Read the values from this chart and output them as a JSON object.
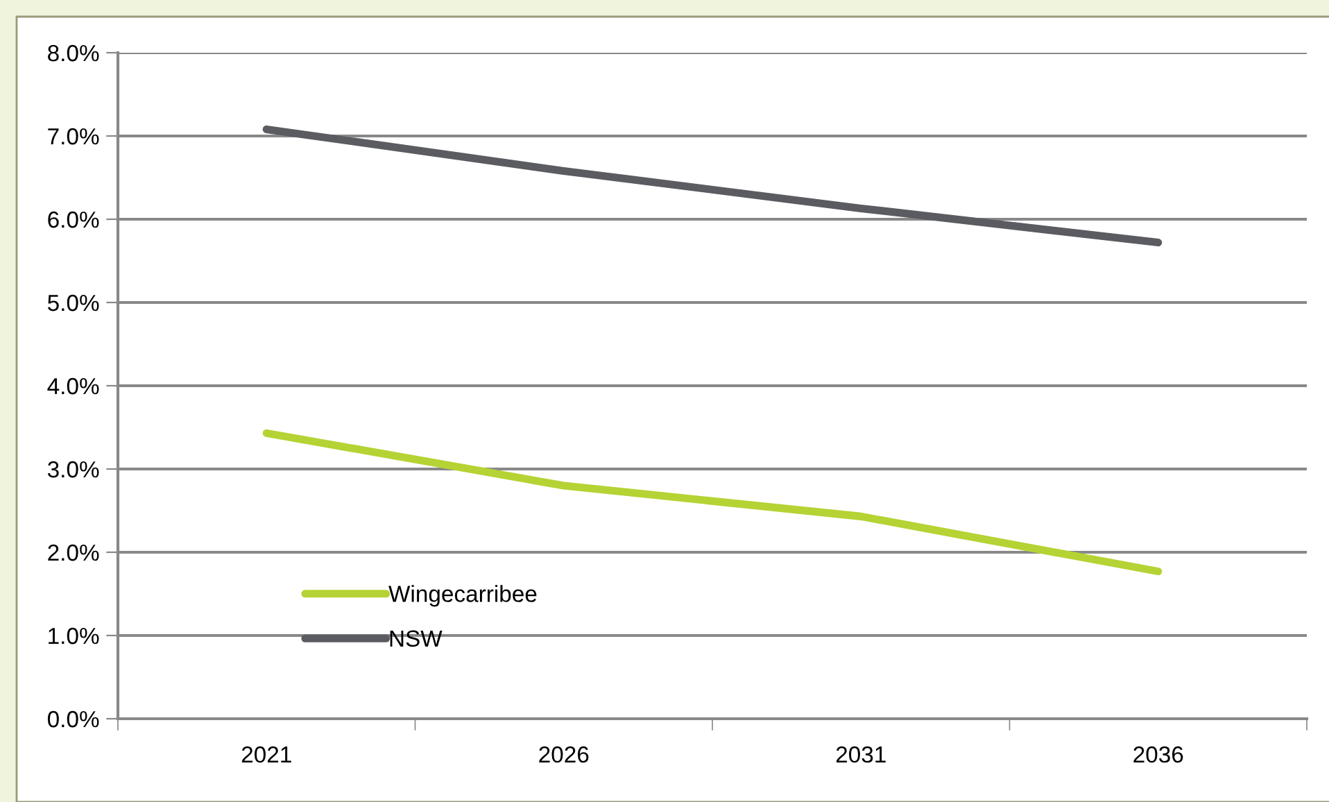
{
  "chart_data": {
    "type": "line",
    "categories": [
      "2021",
      "2026",
      "2031",
      "2036"
    ],
    "series": [
      {
        "name": "Wingecarribee",
        "color": "#b5d334",
        "values": [
          3.43,
          2.8,
          2.43,
          1.77
        ]
      },
      {
        "name": "NSW",
        "color": "#5b5c61",
        "values": [
          7.08,
          6.58,
          6.13,
          5.72
        ]
      }
    ],
    "ylim": [
      0,
      8
    ],
    "yticks": [
      {
        "value": 0,
        "label": "0.0%"
      },
      {
        "value": 1,
        "label": "1.0%"
      },
      {
        "value": 2,
        "label": "2.0%"
      },
      {
        "value": 3,
        "label": "3.0%"
      },
      {
        "value": 4,
        "label": "4.0%"
      },
      {
        "value": 5,
        "label": "5.0%"
      },
      {
        "value": 6,
        "label": "6.0%"
      },
      {
        "value": 7,
        "label": "7.0%"
      },
      {
        "value": 8,
        "label": "8.0%"
      }
    ],
    "grid": "y",
    "legend": "bottom left",
    "marker": "none",
    "line_style": "solid"
  }
}
